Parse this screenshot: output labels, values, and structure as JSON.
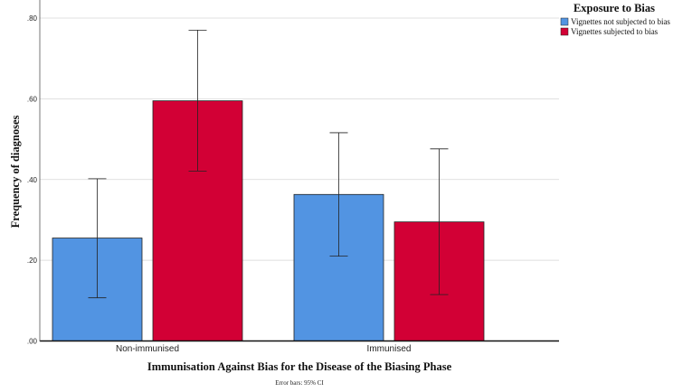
{
  "chart_data": {
    "type": "bar",
    "categories": [
      "Non-immunised",
      "Immunised"
    ],
    "series": [
      {
        "name": "Vignettes not subjected to bias",
        "color": "#5294e2",
        "values": [
          0.255,
          0.363
        ],
        "ci_low": [
          0.107,
          0.21
        ],
        "ci_high": [
          0.402,
          0.516
        ]
      },
      {
        "name": "Vignettes subjected to bias",
        "color": "#d20035",
        "values": [
          0.595,
          0.295
        ],
        "ci_low": [
          0.421,
          0.115
        ],
        "ci_high": [
          0.77,
          0.476
        ]
      }
    ],
    "xlabel": "Immunisation Against Bias for the Disease of the Biasing Phase",
    "ylabel": "Frequency of diagnoses",
    "ylim": [
      0,
      0.8
    ],
    "yticks": [
      ".00",
      ".20",
      ".40",
      ".60",
      ".80"
    ],
    "ytick_values": [
      0,
      0.2,
      0.4,
      0.6,
      0.8
    ],
    "grid": true,
    "legend_title": "Exposure to Bias",
    "legend_position": "top-right",
    "note": "Error bars: 95% CI"
  }
}
